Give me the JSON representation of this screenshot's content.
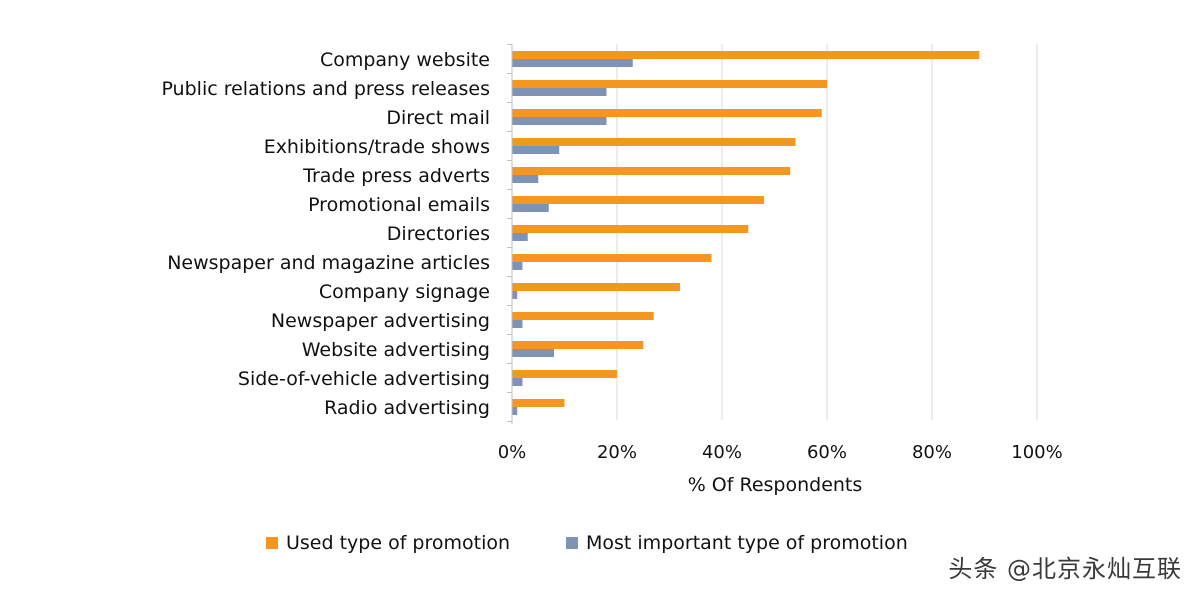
{
  "chart_data": {
    "type": "bar",
    "orientation": "horizontal",
    "categories": [
      "Company website",
      "Public relations and press releases",
      "Direct mail",
      "Exhibitions/trade shows",
      "Trade press adverts",
      "Promotional emails",
      "Directories",
      "Newspaper and magazine articles",
      "Company signage",
      "Newspaper advertising",
      "Website advertising",
      "Side-of-vehicle advertising",
      "Radio advertising"
    ],
    "series": [
      {
        "name": "Used type of promotion",
        "color": "#F5971F",
        "values": [
          89,
          60,
          59,
          54,
          53,
          48,
          45,
          38,
          32,
          27,
          25,
          20,
          10
        ]
      },
      {
        "name": "Most important type of promotion",
        "color": "#7F93B5",
        "values": [
          23,
          18,
          18,
          9,
          5,
          7,
          3,
          2,
          1,
          2,
          8,
          2,
          1
        ]
      }
    ],
    "xlabel": "% Of Respondents",
    "xlim": [
      0,
      100
    ],
    "xticks": [
      0,
      20,
      40,
      60,
      80,
      100
    ],
    "xtick_labels": [
      "0%",
      "20%",
      "40%",
      "60%",
      "80%",
      "100%"
    ],
    "grid": "vertical",
    "legend_position": "bottom"
  },
  "watermark": "头条 @北京永灿互联"
}
